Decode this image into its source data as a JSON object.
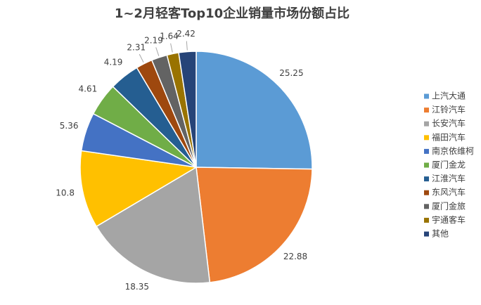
{
  "chart_data": {
    "type": "pie",
    "title": "1~2月轻客Top10企业销量市场份额占比",
    "categories": [
      "上汽大通",
      "江铃汽车",
      "长安汽车",
      "福田汽车",
      "南京依维柯",
      "厦门金龙",
      "江淮汽车",
      "东风汽车",
      "厦门金旅",
      "宇通客车",
      "其他"
    ],
    "values": [
      25.25,
      22.88,
      18.35,
      10.8,
      5.36,
      4.61,
      4.19,
      2.31,
      2.19,
      1.64,
      2.42
    ],
    "colors": [
      "#5b9bd5",
      "#ed7d31",
      "#a5a5a5",
      "#ffc000",
      "#4472c4",
      "#70ad47",
      "#255e91",
      "#9e480e",
      "#636363",
      "#997300",
      "#264478"
    ],
    "legend": "right"
  }
}
